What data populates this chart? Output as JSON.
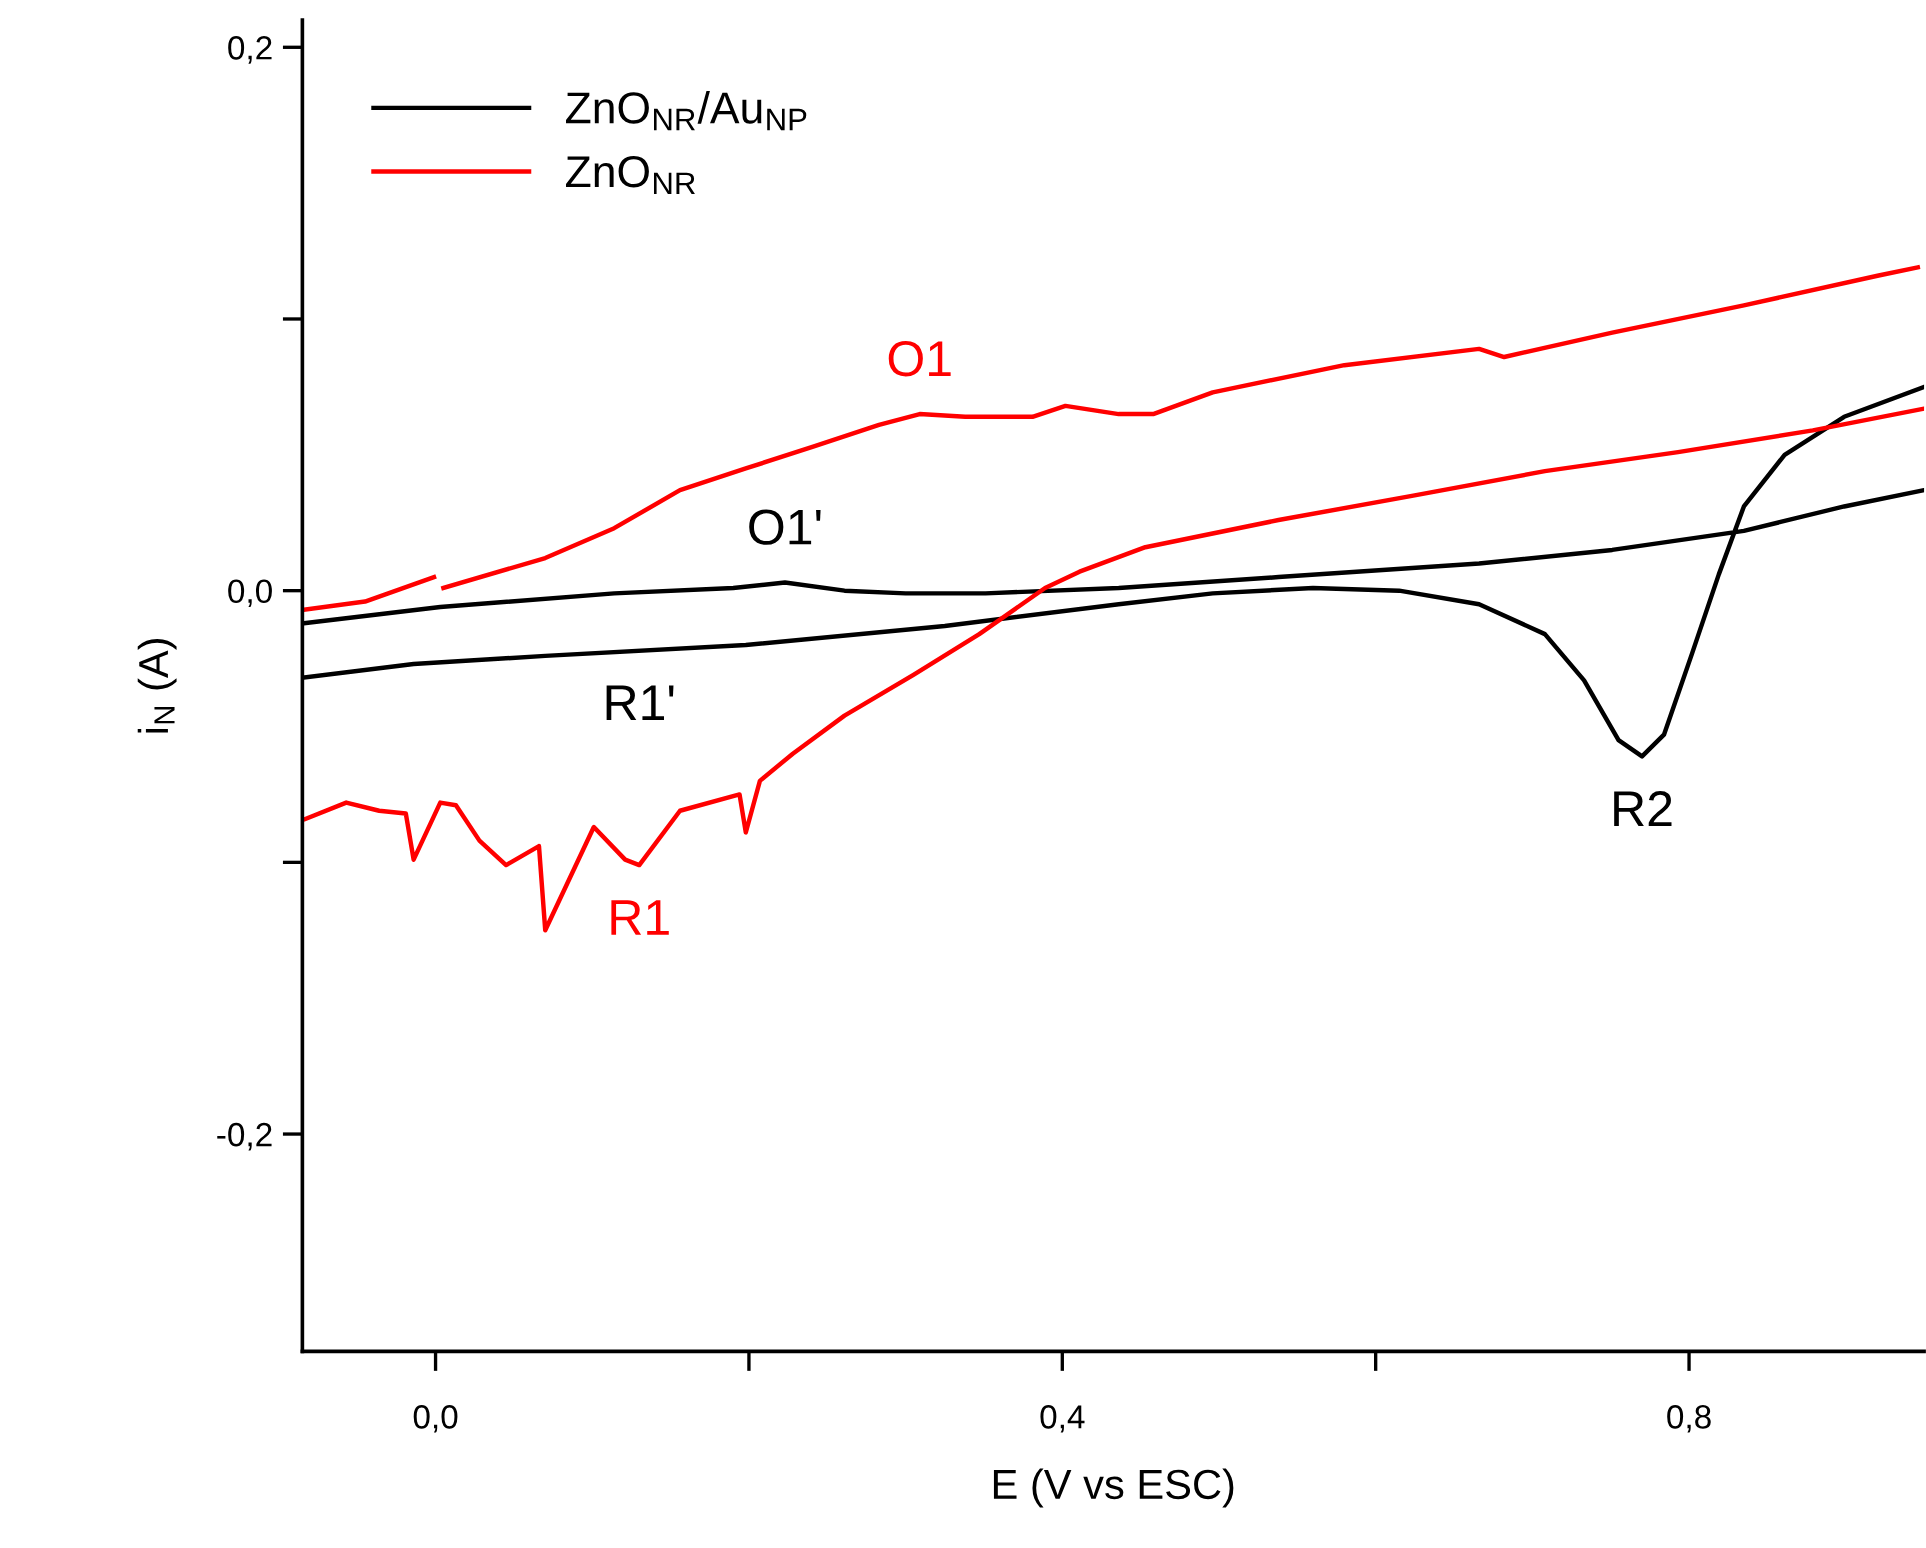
{
  "chart_data": {
    "type": "line",
    "xlabel": "E (V vs ESC)",
    "ylabel": "i$_{N}$ (A)",
    "xlim": [
      -0.085,
      0.95
    ],
    "ylim": [
      -0.28,
      0.21
    ],
    "xticks": [
      {
        "value": 0,
        "label": "0,0"
      },
      {
        "value": 0.2,
        "label": null
      },
      {
        "value": 0.4,
        "label": "0,4"
      },
      {
        "value": 0.6,
        "label": null
      },
      {
        "value": 0.8,
        "label": "0,8"
      }
    ],
    "yticks": [
      {
        "value": -0.2,
        "label": "-0,2"
      },
      {
        "value": -0.1,
        "label": null
      },
      {
        "value": 0,
        "label": "0,0"
      },
      {
        "value": 0.1,
        "label": null
      },
      {
        "value": 0.2,
        "label": "0,2"
      }
    ],
    "grid": false,
    "legend": "top left",
    "marker": "none",
    "line_style": "solid",
    "series": [
      {
        "name": "ZnO$_{NR}$/Au$_{NP}$",
        "color": "#000000",
        "x": [
          -0.084,
          0.003,
          0.114,
          0.19,
          0.223,
          0.261,
          0.3,
          0.351,
          0.436,
          0.538,
          0.666,
          0.751,
          0.835,
          0.899,
          0.95,
          null,
          0.95,
          0.899,
          0.861,
          0.835,
          0.819,
          0.802,
          0.784,
          0.77,
          0.755,
          0.733,
          0.708,
          0.666,
          0.615,
          0.56,
          0.496,
          0.436,
          0.325,
          0.198,
          0.07,
          -0.014,
          -0.084
        ],
        "values": [
          -0.012,
          -0.006,
          -0.001,
          0.001,
          0.003,
          0.0,
          -0.001,
          -0.001,
          0.001,
          0.005,
          0.01,
          0.015,
          0.022,
          0.031,
          0.037,
          null,
          0.075,
          0.064,
          0.05,
          0.031,
          0.006,
          -0.023,
          -0.053,
          -0.061,
          -0.055,
          -0.033,
          -0.016,
          -0.005,
          0.0,
          0.001,
          -0.001,
          -0.005,
          -0.013,
          -0.02,
          -0.024,
          -0.027,
          -0.032
        ]
      },
      {
        "name": "ZnO$_{NR}$",
        "color": "#ff0000",
        "x": [
          -0.084,
          -0.045,
          -0.001,
          0.002,
          0.005,
          0.07,
          0.114,
          0.156,
          0.198,
          0.241,
          0.283,
          0.309,
          0.338,
          0.381,
          0.402,
          0.436,
          0.458,
          0.496,
          0.58,
          0.666,
          0.682,
          0.751,
          0.835,
          0.921,
          0.946,
          null,
          0.95,
          0.879,
          0.793,
          0.708,
          0.624,
          0.538,
          0.453,
          0.411,
          0.389,
          0.347,
          0.305,
          0.261,
          0.228,
          0.207,
          0.198,
          0.194,
          0.156,
          0.13,
          0.121,
          0.101,
          0.07,
          0.066,
          0.045,
          0.028,
          0.013,
          0.003,
          -0.014,
          -0.019,
          -0.036,
          -0.057,
          -0.083
        ],
        "values": [
          -0.007,
          -0.004,
          0.005,
          null,
          0.001,
          0.012,
          0.023,
          0.037,
          0.045,
          0.053,
          0.061,
          0.065,
          0.064,
          0.064,
          0.068,
          0.065,
          0.065,
          0.073,
          0.083,
          0.089,
          0.086,
          0.095,
          0.105,
          0.116,
          0.119,
          null,
          0.067,
          0.059,
          0.051,
          0.044,
          0.035,
          0.026,
          0.016,
          0.007,
          0.001,
          -0.016,
          -0.031,
          -0.046,
          -0.06,
          -0.07,
          -0.089,
          -0.075,
          -0.081,
          -0.101,
          -0.099,
          -0.087,
          -0.125,
          -0.094,
          -0.101,
          -0.092,
          -0.079,
          -0.078,
          -0.099,
          -0.082,
          -0.081,
          -0.078,
          -0.084
        ]
      }
    ],
    "annotations": [
      {
        "text": "O1",
        "x": 0.309,
        "y": 0.065
      },
      {
        "text": "O1'",
        "x": 0.223,
        "y": 0.003
      },
      {
        "text": "R1'",
        "x": 0.13,
        "y": -0.022
      },
      {
        "text": "R1",
        "x": 0.13,
        "y": -0.101
      },
      {
        "text": "R2",
        "x": 0.77,
        "y": -0.061
      }
    ]
  }
}
